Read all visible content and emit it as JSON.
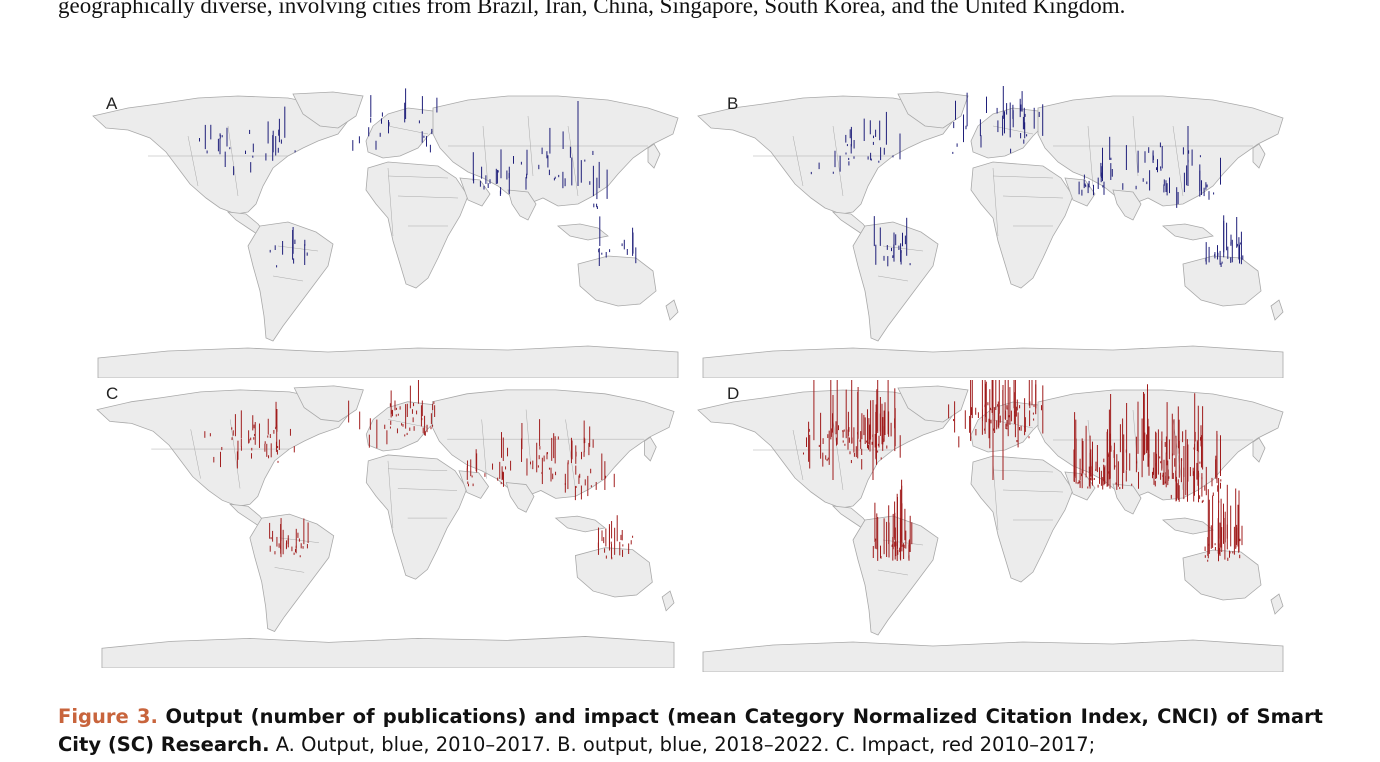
{
  "body_text": "geographically diverse, involving cities from Brazil, Iran, China, Singapore, South Korea, and the United Kingdom.",
  "panels": [
    {
      "label": "A",
      "color": "#1f1f7a"
    },
    {
      "label": "B",
      "color": "#1f1f7a"
    },
    {
      "label": "C",
      "color": "#a01c1c"
    },
    {
      "label": "D",
      "color": "#a01c1c"
    }
  ],
  "colors": {
    "land": "#ececec",
    "border": "#a9a9a9",
    "ocean": "#ffffff"
  },
  "caption": {
    "label": "Figure 3.",
    "title": "Output (number of publications) and impact (mean Category Normalized Citation Index, CNCI) of Smart City (SC) Research.",
    "text": "A. Output, blue, 2010–2017. B. output, blue, 2018–2022. C. Impact, red 2010–2017;"
  }
}
